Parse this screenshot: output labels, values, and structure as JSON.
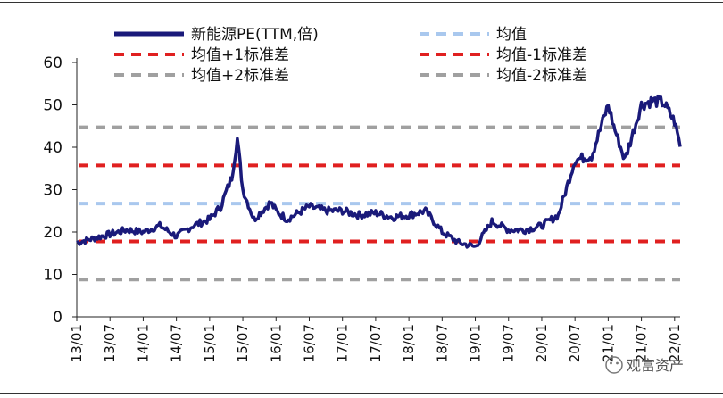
{
  "chart_data": {
    "type": "line",
    "title": "",
    "xlabel": "",
    "ylabel": "",
    "ylim": [
      0,
      60
    ],
    "yticks": [
      0,
      10,
      20,
      30,
      40,
      50,
      60
    ],
    "xticks": [
      "13/01",
      "13/07",
      "14/01",
      "14/07",
      "15/01",
      "15/07",
      "16/01",
      "16/07",
      "17/01",
      "17/07",
      "18/01",
      "18/07",
      "19/01",
      "19/07",
      "20/01",
      "20/07",
      "21/01",
      "21/07",
      "22/01"
    ],
    "legend_position": "top",
    "series": [
      {
        "name": "新能源PE(TTM,倍)",
        "color": "#1a1a7a",
        "style": "solid",
        "x": [
          "13/01",
          "13/04",
          "13/07",
          "13/10",
          "14/01",
          "14/04",
          "14/07",
          "14/10",
          "15/01",
          "15/03",
          "15/05",
          "15/06",
          "15/07",
          "15/09",
          "15/12",
          "16/01",
          "16/03",
          "16/07",
          "16/10",
          "17/01",
          "17/04",
          "17/07",
          "17/10",
          "18/01",
          "18/04",
          "18/07",
          "18/10",
          "19/01",
          "19/04",
          "19/07",
          "19/10",
          "20/01",
          "20/04",
          "20/07",
          "20/10",
          "21/01",
          "21/02",
          "21/04",
          "21/07",
          "21/09",
          "21/11",
          "22/01",
          "22/02"
        ],
        "values": [
          17.5,
          18.5,
          19.5,
          20.5,
          20,
          21.5,
          19,
          21.5,
          23,
          26,
          33,
          42,
          30,
          23,
          27,
          25,
          23,
          26,
          25,
          25,
          24,
          24.5,
          23.5,
          24,
          25,
          20,
          17.5,
          16.5,
          22.5,
          20.5,
          20.5,
          21.5,
          24,
          37,
          38,
          50,
          45,
          37,
          50,
          51,
          50.5,
          46,
          40.5
        ]
      },
      {
        "name": "均值",
        "color": "#a9c8ee",
        "style": "dashed",
        "value": 26.7
      },
      {
        "name": "均值+1标准差",
        "color": "#e02020",
        "style": "dashed",
        "value": 35.7
      },
      {
        "name": "均值-1标准差",
        "color": "#e02020",
        "style": "dashed",
        "value": 17.8
      },
      {
        "name": "均值+2标准差",
        "color": "#a0a0a0",
        "style": "dashed",
        "value": 44.7
      },
      {
        "name": "均值-2标准差",
        "color": "#a0a0a0",
        "style": "dashed",
        "value": 8.8
      }
    ]
  },
  "watermark": "观富资产"
}
